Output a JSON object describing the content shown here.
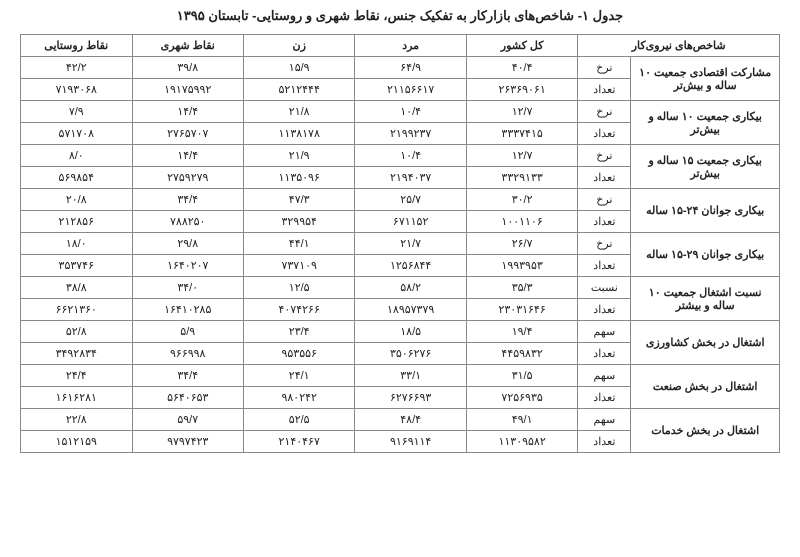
{
  "title": "جدول ۱- شاخص‌های بازارکار به تفکیک جنس، نقاط شهری و روستایی- تابستان ۱۳۹۵",
  "headers": {
    "indicator": "شاخص‌های نیروی‌کار",
    "total": "کل کشور",
    "male": "مرد",
    "female": "زن",
    "urban": "نقاط شهری",
    "rural": "نقاط روستایی"
  },
  "sublabels": {
    "rate": "نرخ",
    "count": "تعداد",
    "ratio": "نسبت",
    "share": "سهم"
  },
  "indicators": [
    {
      "label": "مشارکت اقتصادی جمعیت ۱۰ ساله و بیش‌تر",
      "sub1": "rate",
      "sub2": "count",
      "row1": {
        "total": "۴۰/۴",
        "male": "۶۴/۹",
        "female": "۱۵/۹",
        "urban": "۳۹/۸",
        "rural": "۴۲/۲"
      },
      "row2": {
        "total": "۲۶۳۶۹۰۶۱",
        "male": "۲۱۱۵۶۶۱۷",
        "female": "۵۲۱۲۴۴۴",
        "urban": "۱۹۱۷۵۹۹۲",
        "rural": "۷۱۹۳۰۶۸"
      }
    },
    {
      "label": "بیکاری جمعیت ۱۰ ساله و بیش‌تر",
      "sub1": "rate",
      "sub2": "count",
      "row1": {
        "total": "۱۲/۷",
        "male": "۱۰/۴",
        "female": "۲۱/۸",
        "urban": "۱۴/۴",
        "rural": "۷/۹"
      },
      "row2": {
        "total": "۳۳۳۷۴۱۵",
        "male": "۲۱۹۹۲۳۷",
        "female": "۱۱۳۸۱۷۸",
        "urban": "۲۷۶۵۷۰۷",
        "rural": "۵۷۱۷۰۸"
      }
    },
    {
      "label": "بیکاری جمعیت ۱۵ ساله و بیش‌تر",
      "sub1": "rate",
      "sub2": "count",
      "row1": {
        "total": "۱۲/۷",
        "male": "۱۰/۴",
        "female": "۲۱/۹",
        "urban": "۱۴/۴",
        "rural": "۸/۰"
      },
      "row2": {
        "total": "۳۳۲۹۱۳۳",
        "male": "۲۱۹۴۰۳۷",
        "female": "۱۱۳۵۰۹۶",
        "urban": "۲۷۵۹۲۷۹",
        "rural": "۵۶۹۸۵۴"
      }
    },
    {
      "label": "بیکاری جوانان ۲۴-۱۵ ساله",
      "sub1": "rate",
      "sub2": "count",
      "row1": {
        "total": "۳۰/۲",
        "male": "۲۵/۷",
        "female": "۴۷/۳",
        "urban": "۳۴/۴",
        "rural": "۲۰/۸"
      },
      "row2": {
        "total": "۱۰۰۱۱۰۶",
        "male": "۶۷۱۱۵۲",
        "female": "۳۲۹۹۵۴",
        "urban": "۷۸۸۲۵۰",
        "rural": "۲۱۲۸۵۶"
      }
    },
    {
      "label": "بیکاری جوانان ۲۹-۱۵ ساله",
      "sub1": "rate",
      "sub2": "count",
      "row1": {
        "total": "۲۶/۷",
        "male": "۲۱/۷",
        "female": "۴۴/۱",
        "urban": "۲۹/۸",
        "rural": "۱۸/۰"
      },
      "row2": {
        "total": "۱۹۹۳۹۵۳",
        "male": "۱۲۵۶۸۴۴",
        "female": "۷۳۷۱۰۹",
        "urban": "۱۶۴۰۲۰۷",
        "rural": "۳۵۳۷۴۶"
      }
    },
    {
      "label": "نسبت اشتغال جمعیت ۱۰ ساله و بیشتر",
      "sub1": "ratio",
      "sub2": "count",
      "row1": {
        "total": "۳۵/۳",
        "male": "۵۸/۲",
        "female": "۱۲/۵",
        "urban": "۳۴/۰",
        "rural": "۳۸/۸"
      },
      "row2": {
        "total": "۲۳۰۳۱۶۴۶",
        "male": "۱۸۹۵۷۳۷۹",
        "female": "۴۰۷۴۲۶۶",
        "urban": "۱۶۴۱۰۲۸۵",
        "rural": "۶۶۲۱۳۶۰"
      }
    },
    {
      "label": "اشتغال در بخش کشاورزی",
      "sub1": "share",
      "sub2": "count",
      "row1": {
        "total": "۱۹/۴",
        "male": "۱۸/۵",
        "female": "۲۳/۴",
        "urban": "۵/۹",
        "rural": "۵۲/۸"
      },
      "row2": {
        "total": "۴۴۵۹۸۳۲",
        "male": "۳۵۰۶۲۷۶",
        "female": "۹۵۳۵۵۶",
        "urban": "۹۶۶۹۹۸",
        "rural": "۳۴۹۲۸۳۴"
      }
    },
    {
      "label": "اشتغال در بخش صنعت",
      "sub1": "share",
      "sub2": "count",
      "row1": {
        "total": "۳۱/۵",
        "male": "۳۳/۱",
        "female": "۲۴/۱",
        "urban": "۳۴/۴",
        "rural": "۲۴/۴"
      },
      "row2": {
        "total": "۷۲۵۶۹۳۵",
        "male": "۶۲۷۶۶۹۳",
        "female": "۹۸۰۲۴۲",
        "urban": "۵۶۴۰۶۵۳",
        "rural": "۱۶۱۶۲۸۱"
      }
    },
    {
      "label": "اشتغال در بخش خدمات",
      "sub1": "share",
      "sub2": "count",
      "row1": {
        "total": "۴۹/۱",
        "male": "۴۸/۴",
        "female": "۵۲/۵",
        "urban": "۵۹/۷",
        "rural": "۲۲/۸"
      },
      "row2": {
        "total": "۱۱۳۰۹۵۸۲",
        "male": "۹۱۶۹۱۱۴",
        "female": "۲۱۴۰۴۶۷",
        "urban": "۹۷۹۷۴۲۳",
        "rural": "۱۵۱۲۱۵۹"
      }
    }
  ]
}
